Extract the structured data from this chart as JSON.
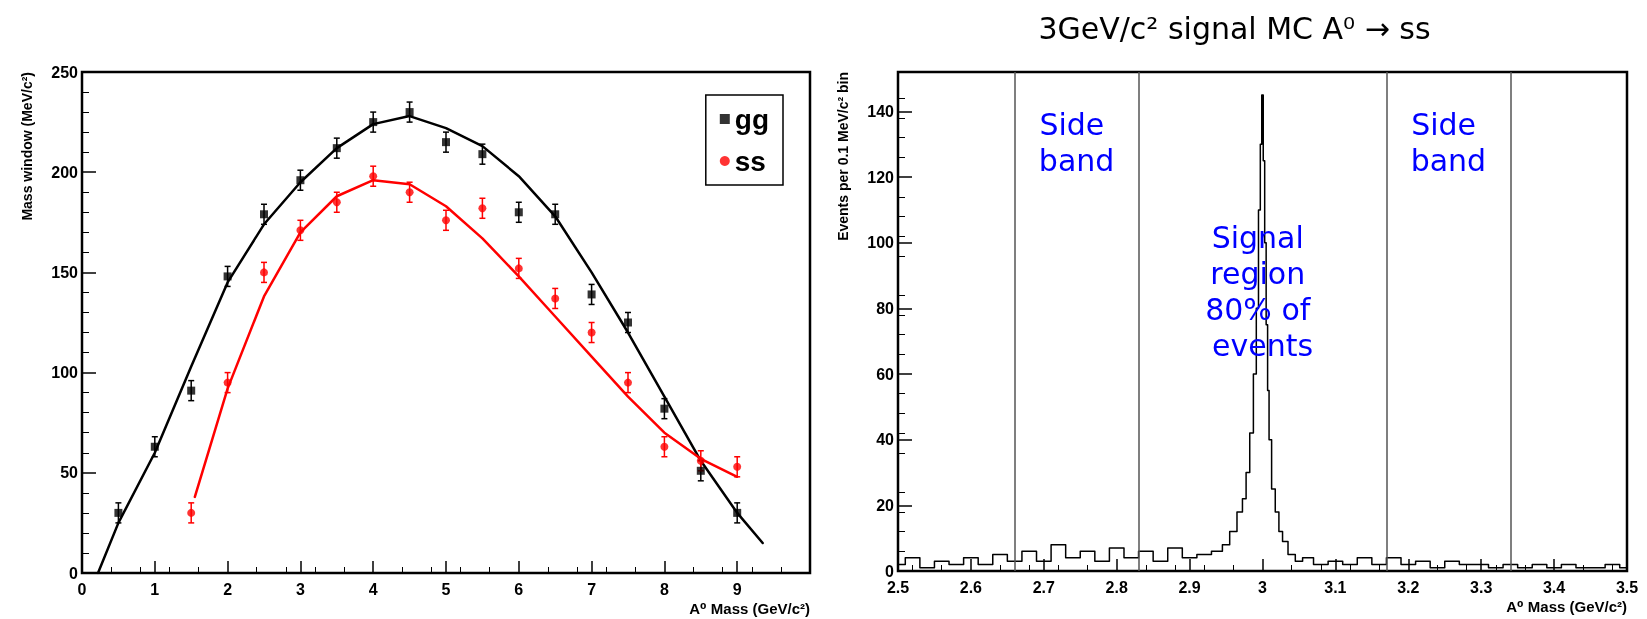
{
  "chart_data": [
    {
      "type": "scatter",
      "xlabel": "A⁰ Mass (GeV/c²)",
      "ylabel": "Mass window (MeV/c²)",
      "xlim": [
        0,
        10
      ],
      "xticks": [
        0,
        1,
        2,
        3,
        4,
        5,
        6,
        7,
        8,
        9
      ],
      "ylim": [
        0,
        250
      ],
      "yticks": [
        0,
        50,
        100,
        150,
        200,
        250
      ],
      "grid": false,
      "legend": "top right",
      "series": [
        {
          "name": "gg",
          "color": "#000000",
          "marker": "square",
          "x": [
            0.5,
            1,
            1.5,
            2,
            2.5,
            3,
            3.5,
            4,
            4.5,
            5,
            5.5,
            6,
            6.5,
            7,
            7.5,
            8,
            8.5,
            9
          ],
          "values": [
            30,
            63,
            91,
            148,
            179,
            196,
            212,
            225,
            230,
            215,
            209,
            180,
            179,
            139,
            125,
            82,
            51,
            30
          ],
          "errors": [
            5,
            5,
            5,
            5,
            5,
            5,
            5,
            5,
            5,
            5,
            5,
            5,
            5,
            5,
            5,
            5,
            5,
            5
          ]
        },
        {
          "name": "ss",
          "color": "#ff0000",
          "marker": "circle",
          "x": [
            1.5,
            2,
            2.5,
            3,
            3.5,
            4,
            4.5,
            5,
            5.5,
            6,
            6.5,
            7,
            7.5,
            8,
            8.5,
            9
          ],
          "values": [
            30,
            95,
            150,
            171,
            185,
            198,
            190,
            176,
            182,
            152,
            137,
            120,
            95,
            63,
            56,
            53
          ],
          "errors": [
            5,
            5,
            5,
            5,
            5,
            5,
            5,
            5,
            5,
            5,
            5,
            5,
            5,
            5,
            5,
            5
          ]
        },
        {
          "type": "line",
          "color": "#000000",
          "marker": "none",
          "line_style": "solid",
          "x": [
            0.22,
            0.5,
            1,
            1.5,
            2,
            2.5,
            3,
            3.5,
            4,
            4.5,
            5,
            5.5,
            6,
            6.5,
            7,
            7.5,
            8,
            8.5,
            9,
            9.35
          ],
          "values": [
            0,
            25,
            60,
            103,
            145,
            174,
            195,
            212,
            224,
            228,
            222,
            213,
            198,
            178,
            150,
            120,
            88,
            56,
            30,
            15
          ]
        },
        {
          "type": "line",
          "color": "#ff0000",
          "marker": "none",
          "line_style": "solid",
          "x": [
            1.55,
            2,
            2.5,
            3,
            3.5,
            4,
            4.5,
            5,
            5.5,
            6,
            6.5,
            7,
            7.5,
            8,
            8.5,
            9
          ],
          "values": [
            38,
            92,
            138,
            170,
            188,
            196,
            194,
            183,
            167,
            148,
            128,
            108,
            88,
            70,
            57,
            48
          ]
        }
      ]
    },
    {
      "type": "step",
      "title": "3GeV/c² signal MC A⁰ → ss",
      "xlabel": "A⁰ Mass (GeV/c²)",
      "ylabel": "Events per 0.1 MeV/c² bin",
      "xlim": [
        2.5,
        3.5
      ],
      "xticks": [
        2.5,
        2.6,
        2.7,
        2.8,
        2.9,
        3,
        3.1,
        3.2,
        3.3,
        3.4,
        3.5
      ],
      "ylim": [
        0,
        152
      ],
      "yticks": [
        0,
        20,
        40,
        60,
        80,
        100,
        120,
        140
      ],
      "grid": false,
      "legend": false,
      "series": [
        {
          "color": "#000000",
          "marker": "none",
          "x": [
            2.5,
            2.52,
            2.54,
            2.56,
            2.58,
            2.6,
            2.62,
            2.64,
            2.66,
            2.68,
            2.7,
            2.72,
            2.74,
            2.76,
            2.78,
            2.8,
            2.82,
            2.84,
            2.86,
            2.88,
            2.9,
            2.92,
            2.94,
            2.95,
            2.96,
            2.97,
            2.975,
            2.98,
            2.985,
            2.99,
            2.993,
            2.996,
            2.998,
            3,
            3.002,
            3.004,
            3.006,
            3.008,
            3.01,
            3.015,
            3.02,
            3.025,
            3.03,
            3.04,
            3.05,
            3.06,
            3.08,
            3.1,
            3.12,
            3.14,
            3.16,
            3.18,
            3.2,
            3.22,
            3.24,
            3.26,
            3.28,
            3.3,
            3.32,
            3.34,
            3.36,
            3.38,
            3.4,
            3.42,
            3.44,
            3.46,
            3.48,
            3.5
          ],
          "values": [
            2,
            4,
            1,
            3,
            2,
            4,
            2,
            5,
            3,
            6,
            3,
            8,
            4,
            6,
            3,
            7,
            4,
            6,
            3,
            7,
            4,
            5,
            6,
            8,
            12,
            18,
            22,
            30,
            42,
            60,
            80,
            110,
            130,
            145,
            125,
            100,
            75,
            55,
            40,
            25,
            18,
            12,
            9,
            5,
            3,
            4,
            2,
            3,
            2,
            4,
            2,
            4,
            2,
            3,
            1,
            3,
            2,
            2,
            1,
            2,
            1,
            2,
            1,
            2,
            1,
            1,
            2,
            1
          ]
        }
      ],
      "ref_lines": [
        {
          "axis": "x",
          "value": 2.66,
          "color": "#555555"
        },
        {
          "axis": "x",
          "value": 2.83,
          "color": "#555555"
        },
        {
          "axis": "x",
          "value": 3.17,
          "color": "#555555"
        },
        {
          "axis": "x",
          "value": 3.34,
          "color": "#555555"
        }
      ],
      "annotations": [
        "Side band",
        {
          "text": "Signal region 80% of events",
          "x": 3.0,
          "y": 85
        },
        "Side band"
      ]
    }
  ]
}
